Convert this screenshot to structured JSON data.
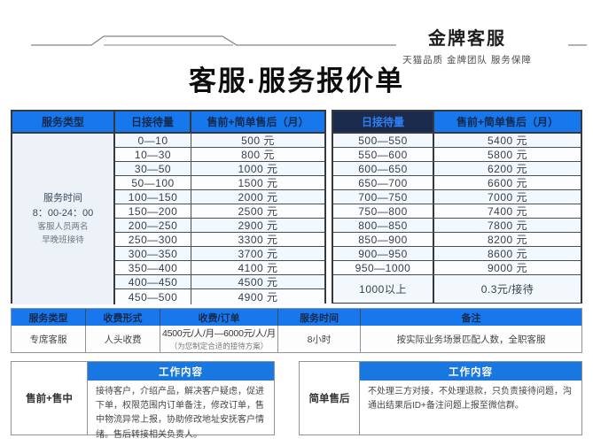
{
  "colors": {
    "accent_blue": "#1778ee",
    "navy": "#1b2b4d"
  },
  "brand": {
    "title": "金牌客服",
    "subtitle": "天猫品质 金牌团队 服务保障"
  },
  "page_title": "客服·服务报价单",
  "pricing": {
    "left": {
      "type_header": "服务类型",
      "volume_header": "日接待量",
      "price_header": "售前+简单售后（月）",
      "service_info": [
        "服务时间",
        "8：00-24：00",
        "客服人员两名",
        "早晚班接待"
      ],
      "rows": [
        {
          "volume": "0—10",
          "price": "500 元"
        },
        {
          "volume": "10—30",
          "price": "800 元"
        },
        {
          "volume": "30—50",
          "price": "1000 元"
        },
        {
          "volume": "50—100",
          "price": "1500 元"
        },
        {
          "volume": "100—150",
          "price": "2000 元"
        },
        {
          "volume": "150—200",
          "price": "2500 元"
        },
        {
          "volume": "200—250",
          "price": "2900 元"
        },
        {
          "volume": "250—300",
          "price": "3300 元"
        },
        {
          "volume": "300—350",
          "price": "3700 元"
        },
        {
          "volume": "350—400",
          "price": "4100 元"
        },
        {
          "volume": "400—450",
          "price": "4500 元"
        },
        {
          "volume": "450—500",
          "price": "4900 元"
        }
      ]
    },
    "right": {
      "volume_header": "日接待量",
      "price_header": "售前+简单售后（月）",
      "rows": [
        {
          "volume": "500—550",
          "price": "5400 元"
        },
        {
          "volume": "550—600",
          "price": "5800 元"
        },
        {
          "volume": "600—650",
          "price": "6200 元"
        },
        {
          "volume": "650—700",
          "price": "6600 元"
        },
        {
          "volume": "700—750",
          "price": "7000 元"
        },
        {
          "volume": "750—800",
          "price": "7400 元"
        },
        {
          "volume": "800—850",
          "price": "7800 元"
        },
        {
          "volume": "850—900",
          "price": "8200 元"
        },
        {
          "volume": "900—950",
          "price": "8600 元"
        },
        {
          "volume": "950—1000",
          "price": "9000 元"
        },
        {
          "volume": "1000以上",
          "price": "0.3元/接待"
        }
      ]
    }
  },
  "dedicated": {
    "headers": {
      "type": "服务类型",
      "form": "收费形式",
      "charge": "收费/订单",
      "time": "服务时间",
      "remark": "备注"
    },
    "row": {
      "type": "专席客服",
      "form": "人头收费",
      "charge": "4500元/人/月—6000元/人/月",
      "charge_note": "（为您制定合适的接待方案）",
      "time": "8小时",
      "remark": "按实际业务场景匹配人数，全职客服"
    }
  },
  "work": {
    "header_label": "工作内容",
    "blocks": [
      {
        "label": "售前+售中",
        "content": "接待客户，介绍产品，解决客户疑虑，促进下单，权限范围内订单备注，修改订单，售中物流异常上报，协助修改地址安抚客户情绪。售后转接相关负责人。"
      },
      {
        "label": "简单售后",
        "content": "不处理三方对接，不处理退款，只负责接待问题，沟通出结果后ID+备注问题上报至微信群。"
      }
    ]
  }
}
